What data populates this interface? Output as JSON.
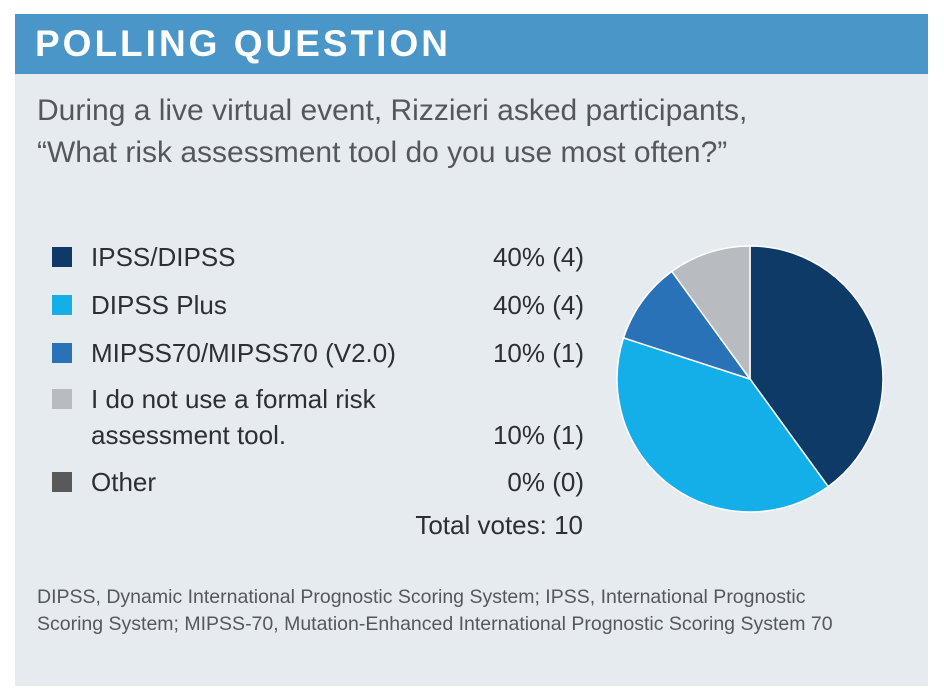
{
  "header": {
    "title": "POLLING QUESTION"
  },
  "question": {
    "line1": "During a live virtual event, Rizzieri asked participants,",
    "line2": "“What risk assessment tool do you use most often?”"
  },
  "chart_data": {
    "type": "pie",
    "title": "What risk assessment tool do you use most often?",
    "slices": [
      {
        "label": "IPSS/DIPSS",
        "label_line2": "",
        "percent": 40,
        "votes": 4,
        "value_text": "40% (4)",
        "color": "#0d3a66"
      },
      {
        "label": "DIPSS Plus",
        "label_line2": "",
        "percent": 40,
        "votes": 4,
        "value_text": "40% (4)",
        "color": "#14aee8"
      },
      {
        "label": "MIPSS70/MIPSS70 (V2.0)",
        "label_line2": "",
        "percent": 10,
        "votes": 1,
        "value_text": "10% (1)",
        "color": "#2a72b8"
      },
      {
        "label": "I do not use a formal risk",
        "label_line2": "assessment tool.",
        "percent": 10,
        "votes": 1,
        "value_text": "10% (1)",
        "color": "#b8bcc0"
      },
      {
        "label": "Other",
        "label_line2": "",
        "percent": 0,
        "votes": 0,
        "value_text": "0% (0)",
        "color": "#58595b"
      }
    ],
    "total_text": "Total votes: 10",
    "total_votes": 10
  },
  "footnote": {
    "line1": "DIPSS, Dynamic International Prognostic Scoring System; IPSS, International Prognostic",
    "line2": "Scoring System; MIPSS-70, Mutation-Enhanced International Prognostic Scoring System 70"
  }
}
